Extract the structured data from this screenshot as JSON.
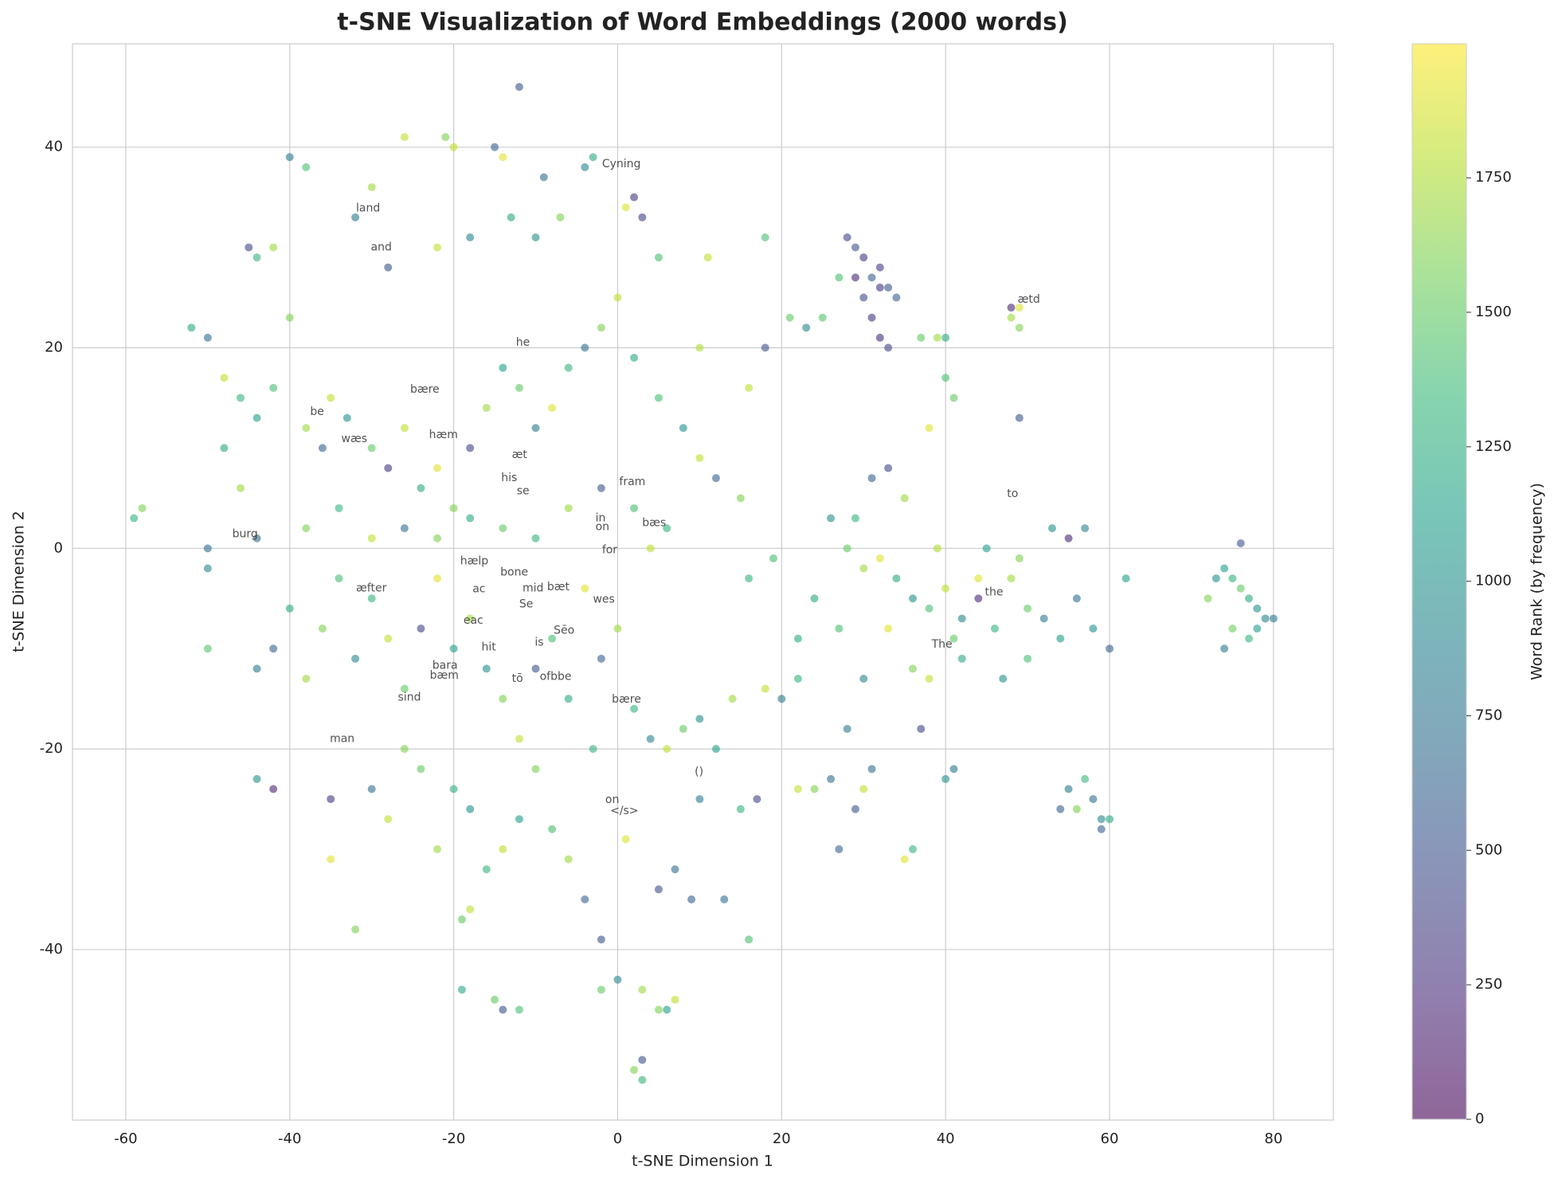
{
  "chart_data": {
    "type": "scatter",
    "title": "t-SNE Visualization of Word Embeddings (2000 words)",
    "x_label": "t-SNE Dimension 1",
    "y_label": "t-SNE Dimension 2",
    "colorbar_label": "Word Rank (by frequency)",
    "colormap": "viridis",
    "alpha": 0.6,
    "grid": true,
    "xlim": [
      -66.5,
      87.3
    ],
    "ylim": [
      -57.0,
      50.3
    ],
    "xticks": [
      -60,
      -40,
      -20,
      0,
      20,
      40,
      60,
      80
    ],
    "yticks": [
      -40,
      -20,
      0,
      20,
      40
    ],
    "clim": [
      0,
      1999
    ],
    "cticks": [
      0,
      250,
      500,
      750,
      1000,
      1250,
      1500,
      1750
    ],
    "series": [
      {
        "x": [
          74,
          75,
          76,
          77,
          78,
          79,
          80,
          76,
          74,
          77,
          75,
          72,
          78,
          73,
          57,
          55,
          58,
          59,
          60,
          56,
          59,
          54,
          28,
          30,
          32,
          34,
          36,
          38,
          40,
          42,
          44,
          46,
          48,
          50,
          52,
          54,
          56,
          58,
          60,
          35,
          33,
          31,
          29,
          27,
          30,
          36,
          38,
          42,
          47,
          50,
          24,
          26,
          39,
          45,
          53,
          55,
          62,
          57,
          44,
          49,
          41,
          33,
          28,
          29,
          30,
          31,
          32,
          33,
          30,
          31,
          32,
          33,
          34,
          29,
          27,
          32,
          48,
          49,
          49,
          48,
          49,
          37,
          39,
          40,
          41,
          38,
          40,
          28,
          29,
          27,
          30,
          31,
          24,
          22,
          26,
          36,
          37,
          35,
          40,
          41,
          10,
          12,
          15,
          17,
          16,
          13,
          9,
          7,
          5,
          -2,
          0,
          3,
          5,
          7,
          -14,
          -12,
          -15,
          -19,
          3,
          2,
          3,
          6,
          -40,
          -38,
          -26,
          -21,
          -20,
          -14,
          -15,
          -9,
          -4,
          -3,
          1,
          2,
          5,
          -7,
          -10,
          -13,
          -18,
          -22,
          -28,
          -30,
          -32,
          -42,
          -44,
          -45,
          -40,
          -52,
          -50,
          -48,
          -46,
          -44,
          -42,
          -38,
          -36,
          -35,
          -33,
          -30,
          -28,
          -26,
          -24,
          -22,
          -20,
          -18,
          -16,
          -14,
          -12,
          -10,
          -8,
          -6,
          -4,
          -2,
          0,
          2,
          5,
          8,
          10,
          12,
          10,
          11,
          18,
          21,
          25,
          23,
          -58,
          -59,
          -50,
          -50,
          -50,
          -44,
          -42,
          -40,
          -38,
          -36,
          -34,
          -32,
          -30,
          -28,
          -26,
          -24,
          -22,
          -20,
          -18,
          -16,
          -14,
          -12,
          -10,
          -8,
          -6,
          -4,
          -2,
          0,
          2,
          4,
          6,
          8,
          10,
          14,
          18,
          20,
          22,
          -30,
          -28,
          -26,
          -24,
          -22,
          -20,
          -18,
          -16,
          -14,
          -12,
          -10,
          -8,
          -6,
          -4,
          -2,
          1,
          -32,
          -35,
          -35,
          -42,
          -44,
          -18,
          -19,
          -3,
          16,
          15,
          16,
          18,
          19,
          22,
          -46,
          -48,
          -44,
          -38,
          -34,
          -30,
          -26,
          -22,
          -18,
          -14,
          -10,
          -6,
          -2,
          2,
          6,
          4,
          3,
          -12
        ],
        "values": [
          -2,
          -3,
          -4,
          -5,
          -6,
          -7,
          -7,
          0.5,
          -10,
          -9,
          -8,
          -5,
          -8,
          -3,
          -23,
          -24,
          -25,
          -27,
          -27,
          -26,
          -28,
          -26,
          0,
          -2,
          -1,
          -3,
          -5,
          -6,
          -4,
          -7,
          -5,
          -8,
          -3,
          -6,
          -7,
          -9,
          -5,
          -8,
          -10,
          5,
          8,
          7,
          3,
          -8,
          -13,
          -12,
          -13,
          -11,
          -13,
          -11,
          -5,
          3,
          0,
          0,
          2,
          1,
          -3,
          2,
          -3,
          -1,
          -9,
          -8,
          31,
          30,
          29,
          27,
          28,
          26,
          25,
          23,
          21,
          20,
          25,
          27,
          27,
          26,
          23,
          24,
          22,
          24,
          13,
          21,
          21,
          21,
          15,
          12,
          17,
          -18,
          -26,
          -30,
          -24,
          -22,
          -24,
          -24,
          -23,
          -30,
          -18,
          -31,
          -23,
          -22,
          -25,
          -20,
          -26,
          -25,
          -39,
          -35,
          -35,
          -32,
          -34,
          -44,
          -43,
          -44,
          -46,
          -45,
          -46,
          -46,
          -45,
          -44,
          -51,
          -52,
          -53,
          -46,
          39,
          38,
          41,
          41,
          40,
          39,
          40,
          37,
          38,
          39,
          34,
          35,
          29,
          33,
          31,
          33,
          31,
          30,
          28,
          36,
          33,
          30,
          29,
          30,
          23,
          22,
          21,
          17,
          15,
          13,
          16,
          12,
          10,
          15,
          13,
          10,
          8,
          12,
          6,
          8,
          4,
          10,
          14,
          18,
          16,
          12,
          14,
          18,
          20,
          22,
          25,
          19,
          15,
          12,
          9,
          7,
          20,
          29,
          31,
          23,
          23,
          22,
          4,
          3,
          0,
          -2,
          -10,
          -12,
          -10,
          -6,
          -13,
          -8,
          -3,
          -11,
          -5,
          -9,
          -14,
          -8,
          -3,
          -10,
          -7,
          -12,
          -15,
          -19,
          -12,
          -9,
          -15,
          -4,
          -11,
          -8,
          -16,
          -19,
          -20,
          -18,
          -17,
          -15,
          -14,
          -15,
          -13,
          -24,
          -27,
          -20,
          -22,
          -30,
          -24,
          -26,
          -32,
          -30,
          -27,
          -22,
          -28,
          -31,
          -35,
          -39,
          -29,
          -38,
          -31,
          -25,
          -24,
          -23,
          -36,
          -37,
          -20,
          -3,
          5,
          16,
          20,
          -1,
          -9,
          6,
          10,
          1,
          2,
          4,
          1,
          2,
          1,
          3,
          2,
          1,
          4,
          6,
          4,
          2,
          0,
          33,
          46
        ],
        "color_values": [
          1100,
          1300,
          1500,
          1200,
          1000,
          900,
          800,
          500,
          800,
          1300,
          1550,
          1600,
          1100,
          1000,
          1350,
          800,
          700,
          900,
          1200,
          1600,
          600,
          600,
          1500,
          1700,
          1900,
          1200,
          1000,
          1400,
          1800,
          900,
          200,
          1300,
          1700,
          1500,
          800,
          1100,
          700,
          1000,
          600,
          1700,
          400,
          600,
          1300,
          1400,
          900,
          1600,
          1800,
          1200,
          1000,
          1400,
          1200,
          1000,
          1750,
          1100,
          1000,
          200,
          1100,
          900,
          1900,
          1600,
          1500,
          1900,
          400,
          500,
          300,
          600,
          350,
          500,
          450,
          300,
          250,
          400,
          600,
          200,
          1400,
          300,
          1700,
          1900,
          1600,
          200,
          500,
          1500,
          1700,
          1200,
          1500,
          1900,
          1400,
          800,
          500,
          600,
          1800,
          700,
          1600,
          1800,
          700,
          1300,
          400,
          1900,
          1000,
          800,
          800,
          1100,
          1300,
          400,
          1400,
          700,
          600,
          700,
          500,
          1500,
          900,
          1700,
          1600,
          1800,
          500,
          1400,
          1500,
          1200,
          500,
          1600,
          1300,
          1100,
          800,
          1400,
          1800,
          1600,
          1800,
          1900,
          600,
          700,
          900,
          1200,
          1900,
          300,
          1400,
          1600,
          1000,
          1200,
          900,
          1800,
          500,
          1700,
          800,
          1700,
          1300,
          400,
          1600,
          1200,
          700,
          1800,
          1300,
          1100,
          1400,
          1700,
          600,
          1800,
          1000,
          1500,
          300,
          1800,
          1200,
          1900,
          1600,
          400,
          1700,
          1100,
          1500,
          800,
          1900,
          1300,
          700,
          1600,
          1800,
          1200,
          1400,
          1000,
          1800,
          600,
          1750,
          1800,
          1400,
          1500,
          1450,
          900,
          1600,
          1300,
          700,
          900,
          1450,
          800,
          600,
          1200,
          1700,
          1600,
          1400,
          900,
          1300,
          1800,
          1500,
          400,
          1900,
          1100,
          1700,
          1000,
          1600,
          1800,
          500,
          1400,
          1200,
          1900,
          600,
          1700,
          1300,
          900,
          1800,
          1500,
          1000,
          1700,
          1800,
          800,
          1300,
          700,
          1800,
          1600,
          1500,
          1700,
          1250,
          1000,
          1300,
          1800,
          1100,
          1600,
          1400,
          1700,
          600,
          500,
          1900,
          1600,
          1900,
          300,
          200,
          1000,
          1800,
          1500,
          1300,
          1300,
          1600,
          1800,
          500,
          1400,
          1200,
          1700,
          1200,
          700,
          1600,
          1300,
          1800,
          700,
          1600,
          1200,
          1500,
          1300,
          1700,
          500,
          1400,
          1300,
          1800,
          400,
          500
        ]
      }
    ],
    "annotations": [
      {
        "text": "Cyning",
        "x": -2.2,
        "y": 38.0
      },
      {
        "text": "land",
        "x": -32.2,
        "y": 33.6
      },
      {
        "text": "and",
        "x": -30.4,
        "y": 29.7
      },
      {
        "text": "he",
        "x": -12.7,
        "y": 20.2
      },
      {
        "text": "bære",
        "x": -25.6,
        "y": 15.5
      },
      {
        "text": "be",
        "x": -37.8,
        "y": 13.3
      },
      {
        "text": "wæs",
        "x": -34.0,
        "y": 10.6
      },
      {
        "text": "hæm",
        "x": -23.3,
        "y": 11.0
      },
      {
        "text": "æt",
        "x": -13.2,
        "y": 9.0
      },
      {
        "text": "his",
        "x": -14.5,
        "y": 6.7
      },
      {
        "text": "se",
        "x": -12.6,
        "y": 5.4
      },
      {
        "text": "fram",
        "x": -0.1,
        "y": 6.3
      },
      {
        "text": "burg",
        "x": -47.3,
        "y": 1.1
      },
      {
        "text": "in",
        "x": -3.0,
        "y": 2.7
      },
      {
        "text": "on",
        "x": -3.0,
        "y": 1.8
      },
      {
        "text": "bæs",
        "x": 2.7,
        "y": 2.2
      },
      {
        "text": "for",
        "x": -2.2,
        "y": -0.5
      },
      {
        "text": "hælp",
        "x": -19.5,
        "y": -1.6
      },
      {
        "text": "bone",
        "x": -14.6,
        "y": -2.7
      },
      {
        "text": "æfter",
        "x": -32.2,
        "y": -4.3
      },
      {
        "text": "ac",
        "x": -18.0,
        "y": -4.4
      },
      {
        "text": "mid",
        "x": -11.9,
        "y": -4.3
      },
      {
        "text": "bæt",
        "x": -8.9,
        "y": -4.2
      },
      {
        "text": "wes",
        "x": -3.3,
        "y": -5.4
      },
      {
        "text": "Se",
        "x": -12.3,
        "y": -5.9
      },
      {
        "text": "eac",
        "x": -19.1,
        "y": -7.5
      },
      {
        "text": "Sēo",
        "x": -8.1,
        "y": -8.5
      },
      {
        "text": "is",
        "x": -10.4,
        "y": -9.7
      },
      {
        "text": "hit",
        "x": -16.9,
        "y": -10.2
      },
      {
        "text": "bara",
        "x": -22.9,
        "y": -12.0
      },
      {
        "text": "bæm",
        "x": -23.2,
        "y": -13.0
      },
      {
        "text": "tō",
        "x": -13.2,
        "y": -13.3
      },
      {
        "text": "ofbbe",
        "x": -9.8,
        "y": -13.1
      },
      {
        "text": "sind",
        "x": -27.1,
        "y": -15.2
      },
      {
        "text": "bære",
        "x": -1.0,
        "y": -15.4
      },
      {
        "text": "man",
        "x": -35.4,
        "y": -19.3
      },
      {
        "text": "()",
        "x": 9.1,
        "y": -22.6
      },
      {
        "text": "on",
        "x": -1.8,
        "y": -25.4
      },
      {
        "text": "</s>",
        "x": -1.2,
        "y": -26.5
      },
      {
        "text": "The",
        "x": 38.0,
        "y": -9.9
      },
      {
        "text": "the",
        "x": 44.5,
        "y": -4.7
      },
      {
        "text": "to",
        "x": 47.2,
        "y": 5.1
      },
      {
        "text": "ætd",
        "x": 48.5,
        "y": 24.5
      }
    ]
  }
}
